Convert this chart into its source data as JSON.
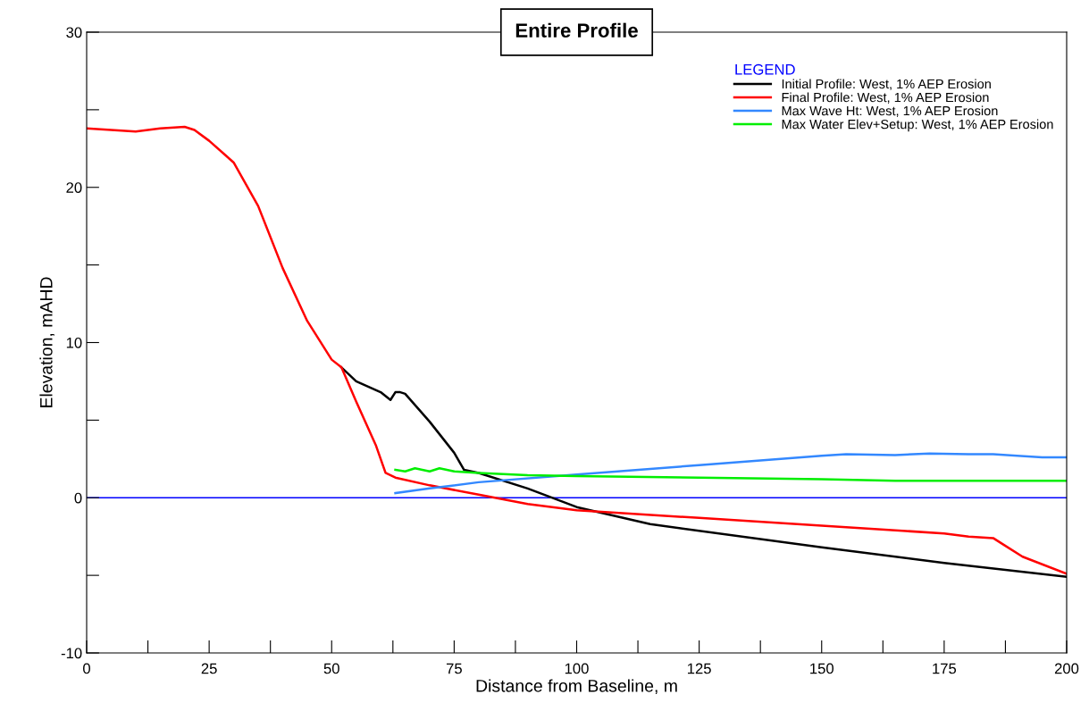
{
  "chart_data": {
    "type": "line",
    "title": "Entire Profile",
    "xlabel": "Distance from Baseline, m",
    "ylabel": "Elevation, mAHD",
    "legend_title": "LEGEND",
    "legend": "top right",
    "grid": false,
    "xlim": [
      0,
      200
    ],
    "ylim": [
      -10,
      30
    ],
    "xticks": [
      0,
      {
        "value": 12.5,
        "label": null
      },
      25,
      {
        "value": 37.5,
        "label": null
      },
      50,
      {
        "value": 62.5,
        "label": null
      },
      75,
      {
        "value": 87.5,
        "label": null
      },
      100,
      {
        "value": 112.5,
        "label": null
      },
      125,
      {
        "value": 137.5,
        "label": null
      },
      150,
      {
        "value": 162.5,
        "label": null
      },
      175,
      {
        "value": 187.5,
        "label": null
      },
      200
    ],
    "yticks": [
      -10,
      {
        "value": -5,
        "label": null
      },
      0,
      {
        "value": 5,
        "label": null
      },
      10,
      {
        "value": 15,
        "label": null
      },
      20,
      {
        "value": 25,
        "label": null
      },
      30
    ],
    "ref_lines": [
      {
        "axis": "y",
        "value": 0,
        "color": "#0000ff"
      }
    ],
    "series": [
      {
        "name": "Initial Profile: West, 1% AEP Erosion",
        "color": "#000000",
        "x": [
          52,
          55,
          60,
          62,
          63,
          64,
          65,
          70,
          75,
          77,
          80,
          90,
          100,
          115,
          150,
          175,
          200
        ],
        "values": [
          8.4,
          7.5,
          6.8,
          6.3,
          6.8,
          6.8,
          6.7,
          4.9,
          2.9,
          1.8,
          1.6,
          0.6,
          -0.6,
          -1.7,
          -3.2,
          -4.2,
          -5.1
        ]
      },
      {
        "name": "Final Profile: West, 1% AEP Erosion",
        "color": "#ff0000",
        "x": [
          0,
          10,
          15,
          20,
          22,
          25,
          30,
          35,
          40,
          45,
          50,
          52,
          55,
          59,
          61,
          63,
          70,
          80,
          90,
          100,
          125,
          150,
          175,
          180,
          185,
          187,
          191,
          200
        ],
        "values": [
          23.8,
          23.6,
          23.8,
          23.9,
          23.7,
          23.0,
          21.6,
          18.8,
          14.8,
          11.4,
          8.9,
          8.4,
          6.2,
          3.4,
          1.6,
          1.3,
          0.8,
          0.2,
          -0.4,
          -0.8,
          -1.3,
          -1.8,
          -2.3,
          -2.5,
          -2.6,
          -3.0,
          -3.8,
          -4.9
        ]
      },
      {
        "name": "Max Wave Ht: West, 1% AEP Erosion",
        "color": "#3388ff",
        "x": [
          63,
          70,
          80,
          100,
          125,
          150,
          155,
          165,
          172,
          180,
          185,
          195,
          200
        ],
        "values": [
          0.3,
          0.6,
          1.0,
          1.5,
          2.1,
          2.7,
          2.8,
          2.75,
          2.85,
          2.8,
          2.8,
          2.6,
          2.6
        ]
      },
      {
        "name": "Max Water Elev+Setup: West, 1% AEP Erosion",
        "color": "#00ee00",
        "x": [
          63,
          65,
          67,
          70,
          72,
          75,
          80,
          90,
          100,
          125,
          150,
          165,
          200
        ],
        "values": [
          1.8,
          1.7,
          1.9,
          1.7,
          1.9,
          1.7,
          1.6,
          1.45,
          1.4,
          1.3,
          1.2,
          1.1,
          1.1
        ]
      }
    ]
  }
}
